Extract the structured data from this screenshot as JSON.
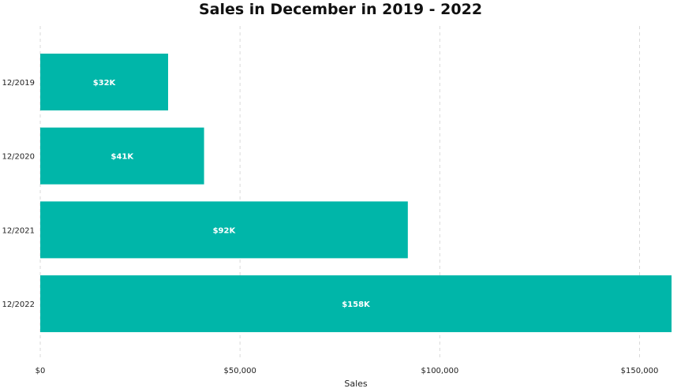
{
  "chart_data": {
    "type": "bar",
    "orientation": "horizontal",
    "title": "Sales in December in 2019 - 2022",
    "xlabel": "Sales",
    "ylabel": "",
    "categories": [
      "12/2019",
      "12/2020",
      "12/2021",
      "12/2022"
    ],
    "values": [
      32000,
      41000,
      92000,
      158000
    ],
    "data_labels": [
      "$32K",
      "$41K",
      "$92K",
      "$158K"
    ],
    "xlim": [
      0,
      158000
    ],
    "x_ticks": [
      0,
      50000,
      100000,
      150000
    ],
    "x_tick_labels": [
      "$0",
      "$50,000",
      "$100,000",
      "$150,000"
    ],
    "grid": "vertical-dashed",
    "legend": "none",
    "bar_color": "#00B6A9",
    "grid_color": "#d9d9d9"
  }
}
